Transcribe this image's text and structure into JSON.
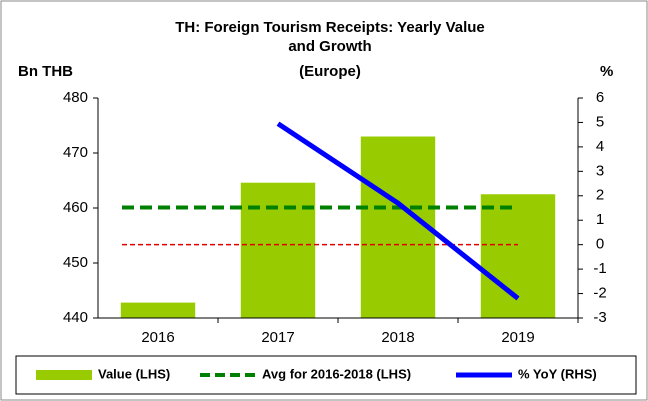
{
  "chart_data": {
    "type": "bar_line",
    "title": "TH: Foreign Tourism Receipts: Yearly Value",
    "subtitle": "and Growth",
    "subtitle2": "(Europe)",
    "y_label": "Bn THB",
    "y2_label": "%",
    "categories": [
      "2016",
      "2017",
      "2018",
      "2019"
    ],
    "ylim": [
      440,
      480
    ],
    "yticks": [
      440,
      450,
      460,
      470,
      480
    ],
    "y2lim": [
      -3,
      6
    ],
    "y2ticks": [
      -3,
      -2,
      -1,
      0,
      1,
      2,
      3,
      4,
      5,
      6
    ],
    "series": [
      {
        "name": "Value (LHS)",
        "kind": "bar",
        "color": "#99cc00",
        "values": [
          442.8,
          464.6,
          473.0,
          462.5
        ]
      },
      {
        "name": "Avg for 2016-2018 (LHS)",
        "kind": "dashed",
        "color": "#008000",
        "values": [
          460.1,
          460.1,
          460.1,
          460.1
        ]
      },
      {
        "name": "% YoY (RHS)",
        "kind": "line",
        "color": "#0000ff",
        "axis": "y2",
        "values": [
          null,
          4.95,
          1.7,
          -2.2
        ]
      }
    ],
    "reference_lines": [
      {
        "value": 0,
        "axis": "y2",
        "color": "#e00000"
      }
    ]
  }
}
